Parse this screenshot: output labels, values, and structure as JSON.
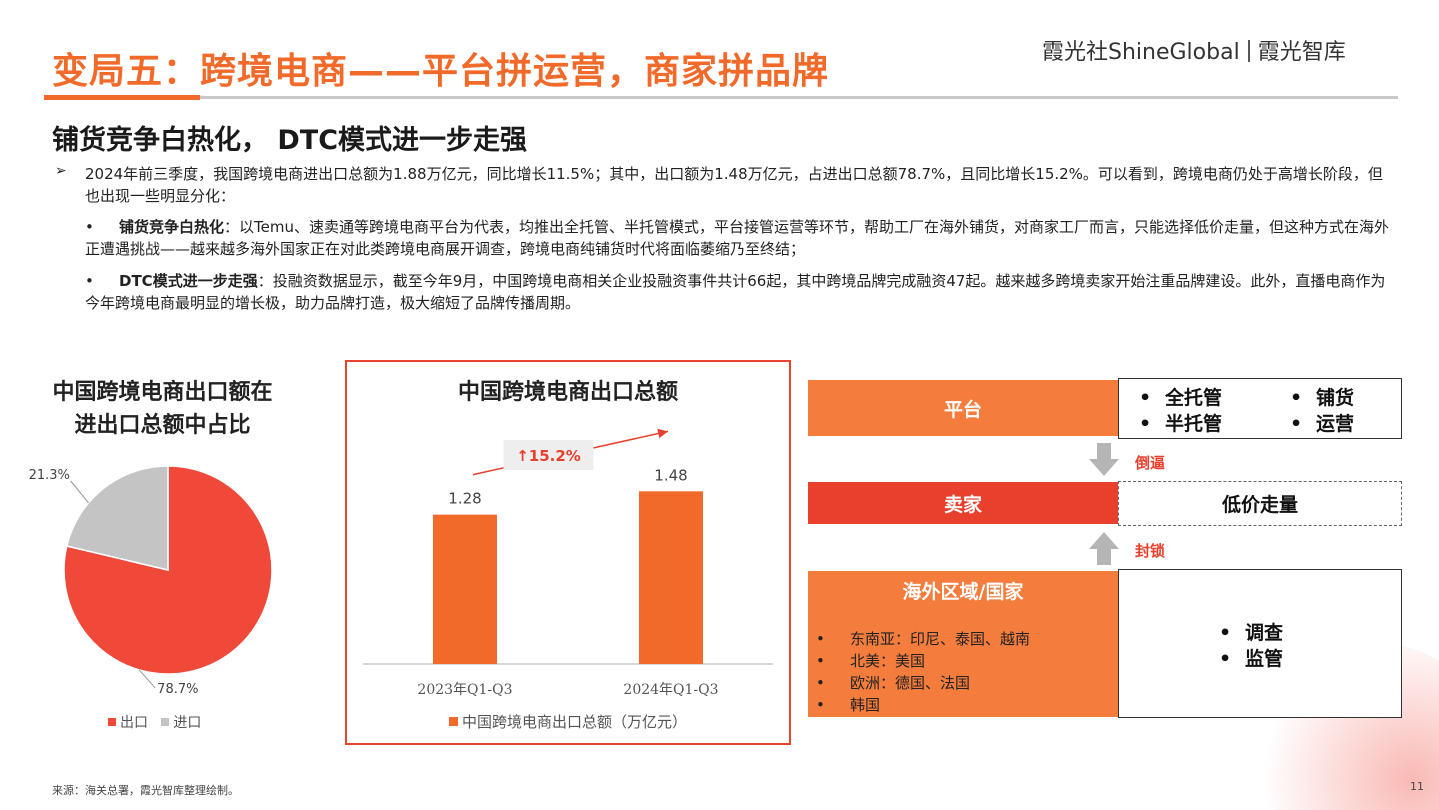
{
  "header": {
    "title": "变局五：跨境电商——平台拼运营，商家拼品牌",
    "brand_left": "霞光社ShineGlobal",
    "brand_right": "霞光智库"
  },
  "subtitle": "铺货竞争白热化， DTC模式进一步走强",
  "body": {
    "bullet_arrow": "➢",
    "p1": "2024年前三季度，我国跨境电商进出口总额为1.88万亿元，同比增长11.5%；其中，出口额为1.48万亿元，占进出口总额78.7%，且同比增长15.2%。可以看到，跨境电商仍处于高增长阶段，但也出现一些明显分化：",
    "bullet_dot": "•",
    "p2_bold": "铺货竞争白热化",
    "p2_text": "：以Temu、速卖通等跨境电商平台为代表，均推出全托管、半托管模式，平台接管运营等环节，帮助工厂在海外铺货，对商家工厂而言，只能选择低价走量，但这种方式在海外正遭遇挑战——越来越多海外国家正在对此类跨境电商展开调查，跨境电商纯铺货时代将面临萎缩乃至终结；",
    "p3_bold": "DTC模式进一步走强",
    "p3_text": "：投融资数据显示，截至今年9月，中国跨境电商相关企业投融资事件共计66起，其中跨境品牌完成融资47起。越来越多跨境卖家开始注重品牌建设。此外，直播电商作为今年跨境电商最明显的增长极，助力品牌打造，极大缩短了品牌传播周期。"
  },
  "pie": {
    "title_line1": "中国跨境电商出口额在",
    "title_line2": "进出口总额中占比",
    "legend_export": "出口",
    "legend_import": "进口"
  },
  "bar": {
    "title": "中国跨境电商出口总额",
    "growth_label": "↑15.2%",
    "legend": "中国跨境电商出口总额（万亿元）"
  },
  "chart_data": [
    {
      "type": "pie",
      "title": "中国跨境电商出口额在进出口总额中占比",
      "slices": [
        {
          "name": "出口",
          "value": 78.7,
          "label": "78.7%",
          "color": "#f0493a"
        },
        {
          "name": "进口",
          "value": 21.3,
          "label": "21.3%",
          "color": "#c4c4c4"
        }
      ],
      "legend": "bottom"
    },
    {
      "type": "bar",
      "title": "中国跨境电商出口总额",
      "categories": [
        "2023年Q1-Q3",
        "2024年Q1-Q3"
      ],
      "series": [
        {
          "name": "中国跨境电商出口总额（万亿元）",
          "values": [
            1.28,
            1.48
          ],
          "color": "#f26a2a"
        }
      ],
      "annotation": "↑15.2%",
      "ylim": [
        0,
        1.8
      ],
      "grid": false,
      "legend": "bottom"
    }
  ],
  "diagram": {
    "platform": "平台",
    "platform_items_a": [
      "全托管",
      "半托管"
    ],
    "platform_items_b": [
      "铺货",
      "运营"
    ],
    "force_down": "倒逼",
    "seller": "卖家",
    "seller_result": "低价走量",
    "block_up": "封锁",
    "overseas_title": "海外区域/国家",
    "countries": [
      "东南亚：印尼、泰国、越南",
      "北美：美国",
      "欧洲：德国、法国",
      "韩国"
    ],
    "actions": [
      "调查",
      "监管"
    ],
    "dot": "•"
  },
  "footer": {
    "source": "来源：海关总署，霞光智库整理绘制。",
    "page": "11"
  },
  "colors": {
    "accent": "#f26a2a",
    "red": "#e8402d",
    "orange_box": "#f47c3c",
    "gray": "#c4c4c4"
  }
}
